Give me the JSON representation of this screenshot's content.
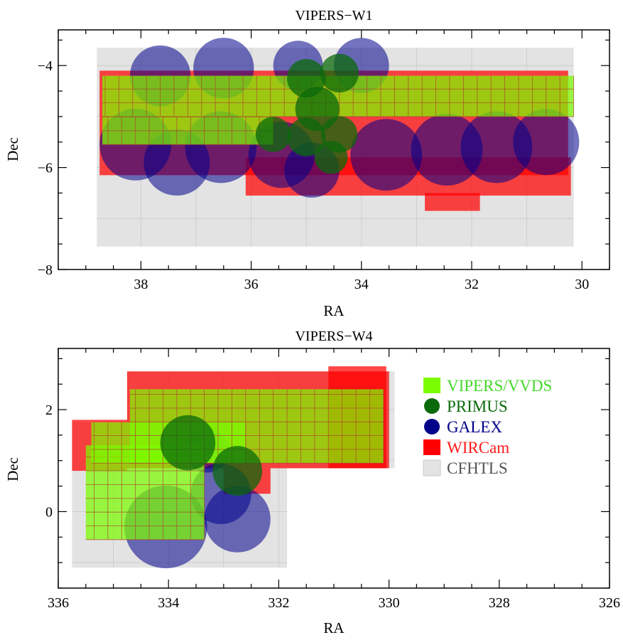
{
  "chart_data": [
    {
      "type": "map",
      "title": "VIPERS−W1",
      "xlabel": "RA",
      "ylabel": "Dec",
      "xlim": [
        39.5,
        29.5
      ],
      "ylim": [
        -8.0,
        -3.3
      ],
      "x_ticks": [
        38,
        36,
        34,
        32,
        30
      ],
      "y_ticks": [
        -4,
        -6,
        -8
      ],
      "x_tick_labels": [
        "38",
        "36",
        "34",
        "32",
        "30"
      ],
      "y_tick_labels": [
        "−4",
        "−6",
        "−8"
      ],
      "layers": {
        "CFHTLS": [
          [
            38.8,
            30.15,
            -3.65,
            -7.55
          ]
        ],
        "WIRCam": [
          [
            38.75,
            30.25,
            -4.1,
            -6.15
          ],
          [
            36.1,
            30.2,
            -5.8,
            -6.55
          ],
          [
            32.85,
            31.85,
            -6.5,
            -6.85
          ]
        ],
        "GALEX": [
          {
            "ra": 38.1,
            "dec": -5.55,
            "r": 0.65
          },
          {
            "ra": 37.35,
            "dec": -5.9,
            "r": 0.6
          },
          {
            "ra": 37.65,
            "dec": -4.2,
            "r": 0.55
          },
          {
            "ra": 36.5,
            "dec": -4.05,
            "r": 0.55
          },
          {
            "ra": 36.55,
            "dec": -5.6,
            "r": 0.65
          },
          {
            "ra": 35.45,
            "dec": -5.75,
            "r": 0.6
          },
          {
            "ra": 34.9,
            "dec": -6.05,
            "r": 0.5
          },
          {
            "ra": 35.15,
            "dec": -4.0,
            "r": 0.45
          },
          {
            "ra": 34.0,
            "dec": -4.0,
            "r": 0.5
          },
          {
            "ra": 33.55,
            "dec": -5.75,
            "r": 0.65
          },
          {
            "ra": 32.45,
            "dec": -5.65,
            "r": 0.65
          },
          {
            "ra": 31.55,
            "dec": -5.6,
            "r": 0.65
          },
          {
            "ra": 30.65,
            "dec": -5.5,
            "r": 0.6
          }
        ],
        "PRIMUS": [
          {
            "ra": 35.0,
            "dec": -4.25,
            "r": 0.35
          },
          {
            "ra": 34.4,
            "dec": -4.15,
            "r": 0.35
          },
          {
            "ra": 35.6,
            "dec": -5.35,
            "r": 0.32
          },
          {
            "ra": 35.0,
            "dec": -5.4,
            "r": 0.35
          },
          {
            "ra": 34.4,
            "dec": -5.35,
            "r": 0.33
          },
          {
            "ra": 34.8,
            "dec": -4.85,
            "r": 0.4
          },
          {
            "ra": 34.55,
            "dec": -5.8,
            "r": 0.3
          }
        ],
        "VIPERS/VVDS": [
          [
            38.7,
            30.15,
            -4.2,
            -5.0
          ],
          [
            38.7,
            35.6,
            -5.0,
            -5.55
          ]
        ]
      },
      "legend": [
        "VIPERS/VVDS",
        "PRIMUS",
        "GALEX",
        "WIRCam",
        "CFHTLS"
      ]
    },
    {
      "type": "map",
      "title": "VIPERS−W4",
      "xlabel": "RA",
      "ylabel": "Dec",
      "xlim": [
        336,
        326
      ],
      "ylim": [
        -1.5,
        3.2
      ],
      "x_ticks": [
        336,
        334,
        332,
        330,
        328,
        326
      ],
      "y_ticks": [
        0,
        2
      ],
      "x_tick_labels": [
        "336",
        "334",
        "332",
        "330",
        "328",
        "326"
      ],
      "y_tick_labels": [
        "0",
        "2"
      ],
      "layers": {
        "CFHTLS": [
          [
            335.75,
            331.85,
            1.75,
            -1.1
          ],
          [
            334.75,
            329.9,
            2.75,
            0.85
          ]
        ],
        "WIRCam": [
          [
            335.75,
            334.75,
            1.8,
            0.8
          ],
          [
            334.75,
            330.0,
            2.75,
            0.85
          ],
          [
            331.1,
            330.05,
            2.85,
            0.85
          ],
          [
            333.0,
            332.15,
            0.85,
            0.35
          ]
        ],
        "GALEX": [
          {
            "ra": 334.05,
            "dec": -0.3,
            "r": 0.75
          },
          {
            "ra": 333.05,
            "dec": 0.35,
            "r": 0.55
          },
          {
            "ra": 332.75,
            "dec": -0.15,
            "r": 0.6
          },
          {
            "ra": 333.3,
            "dec": 1.2,
            "r": 0.4
          }
        ],
        "PRIMUS": [
          {
            "ra": 333.65,
            "dec": 1.35,
            "r": 0.5
          },
          {
            "ra": 332.75,
            "dec": 0.8,
            "r": 0.45
          }
        ],
        "VIPERS/VVDS": [
          [
            335.5,
            333.35,
            1.3,
            -0.55
          ],
          [
            334.7,
            330.1,
            2.4,
            0.95
          ],
          [
            335.4,
            332.6,
            1.75,
            0.95
          ]
        ]
      },
      "legend": [
        "VIPERS/VVDS",
        "PRIMUS",
        "GALEX",
        "WIRCam",
        "CFHTLS"
      ]
    }
  ],
  "legend_colors": {
    "VIPERS/VVDS": "#7cfc00",
    "PRIMUS": "#0b6a0b",
    "GALEX": "#00008b",
    "WIRCam": "#ff0000",
    "CFHTLS": "#e3e3e3"
  },
  "legend_text_colors": {
    "VIPERS/VVDS": "#44d92a",
    "PRIMUS": "#0b6a0b",
    "GALEX": "#00008b",
    "WIRCam": "#ff1a1a",
    "CFHTLS": "#555555"
  }
}
